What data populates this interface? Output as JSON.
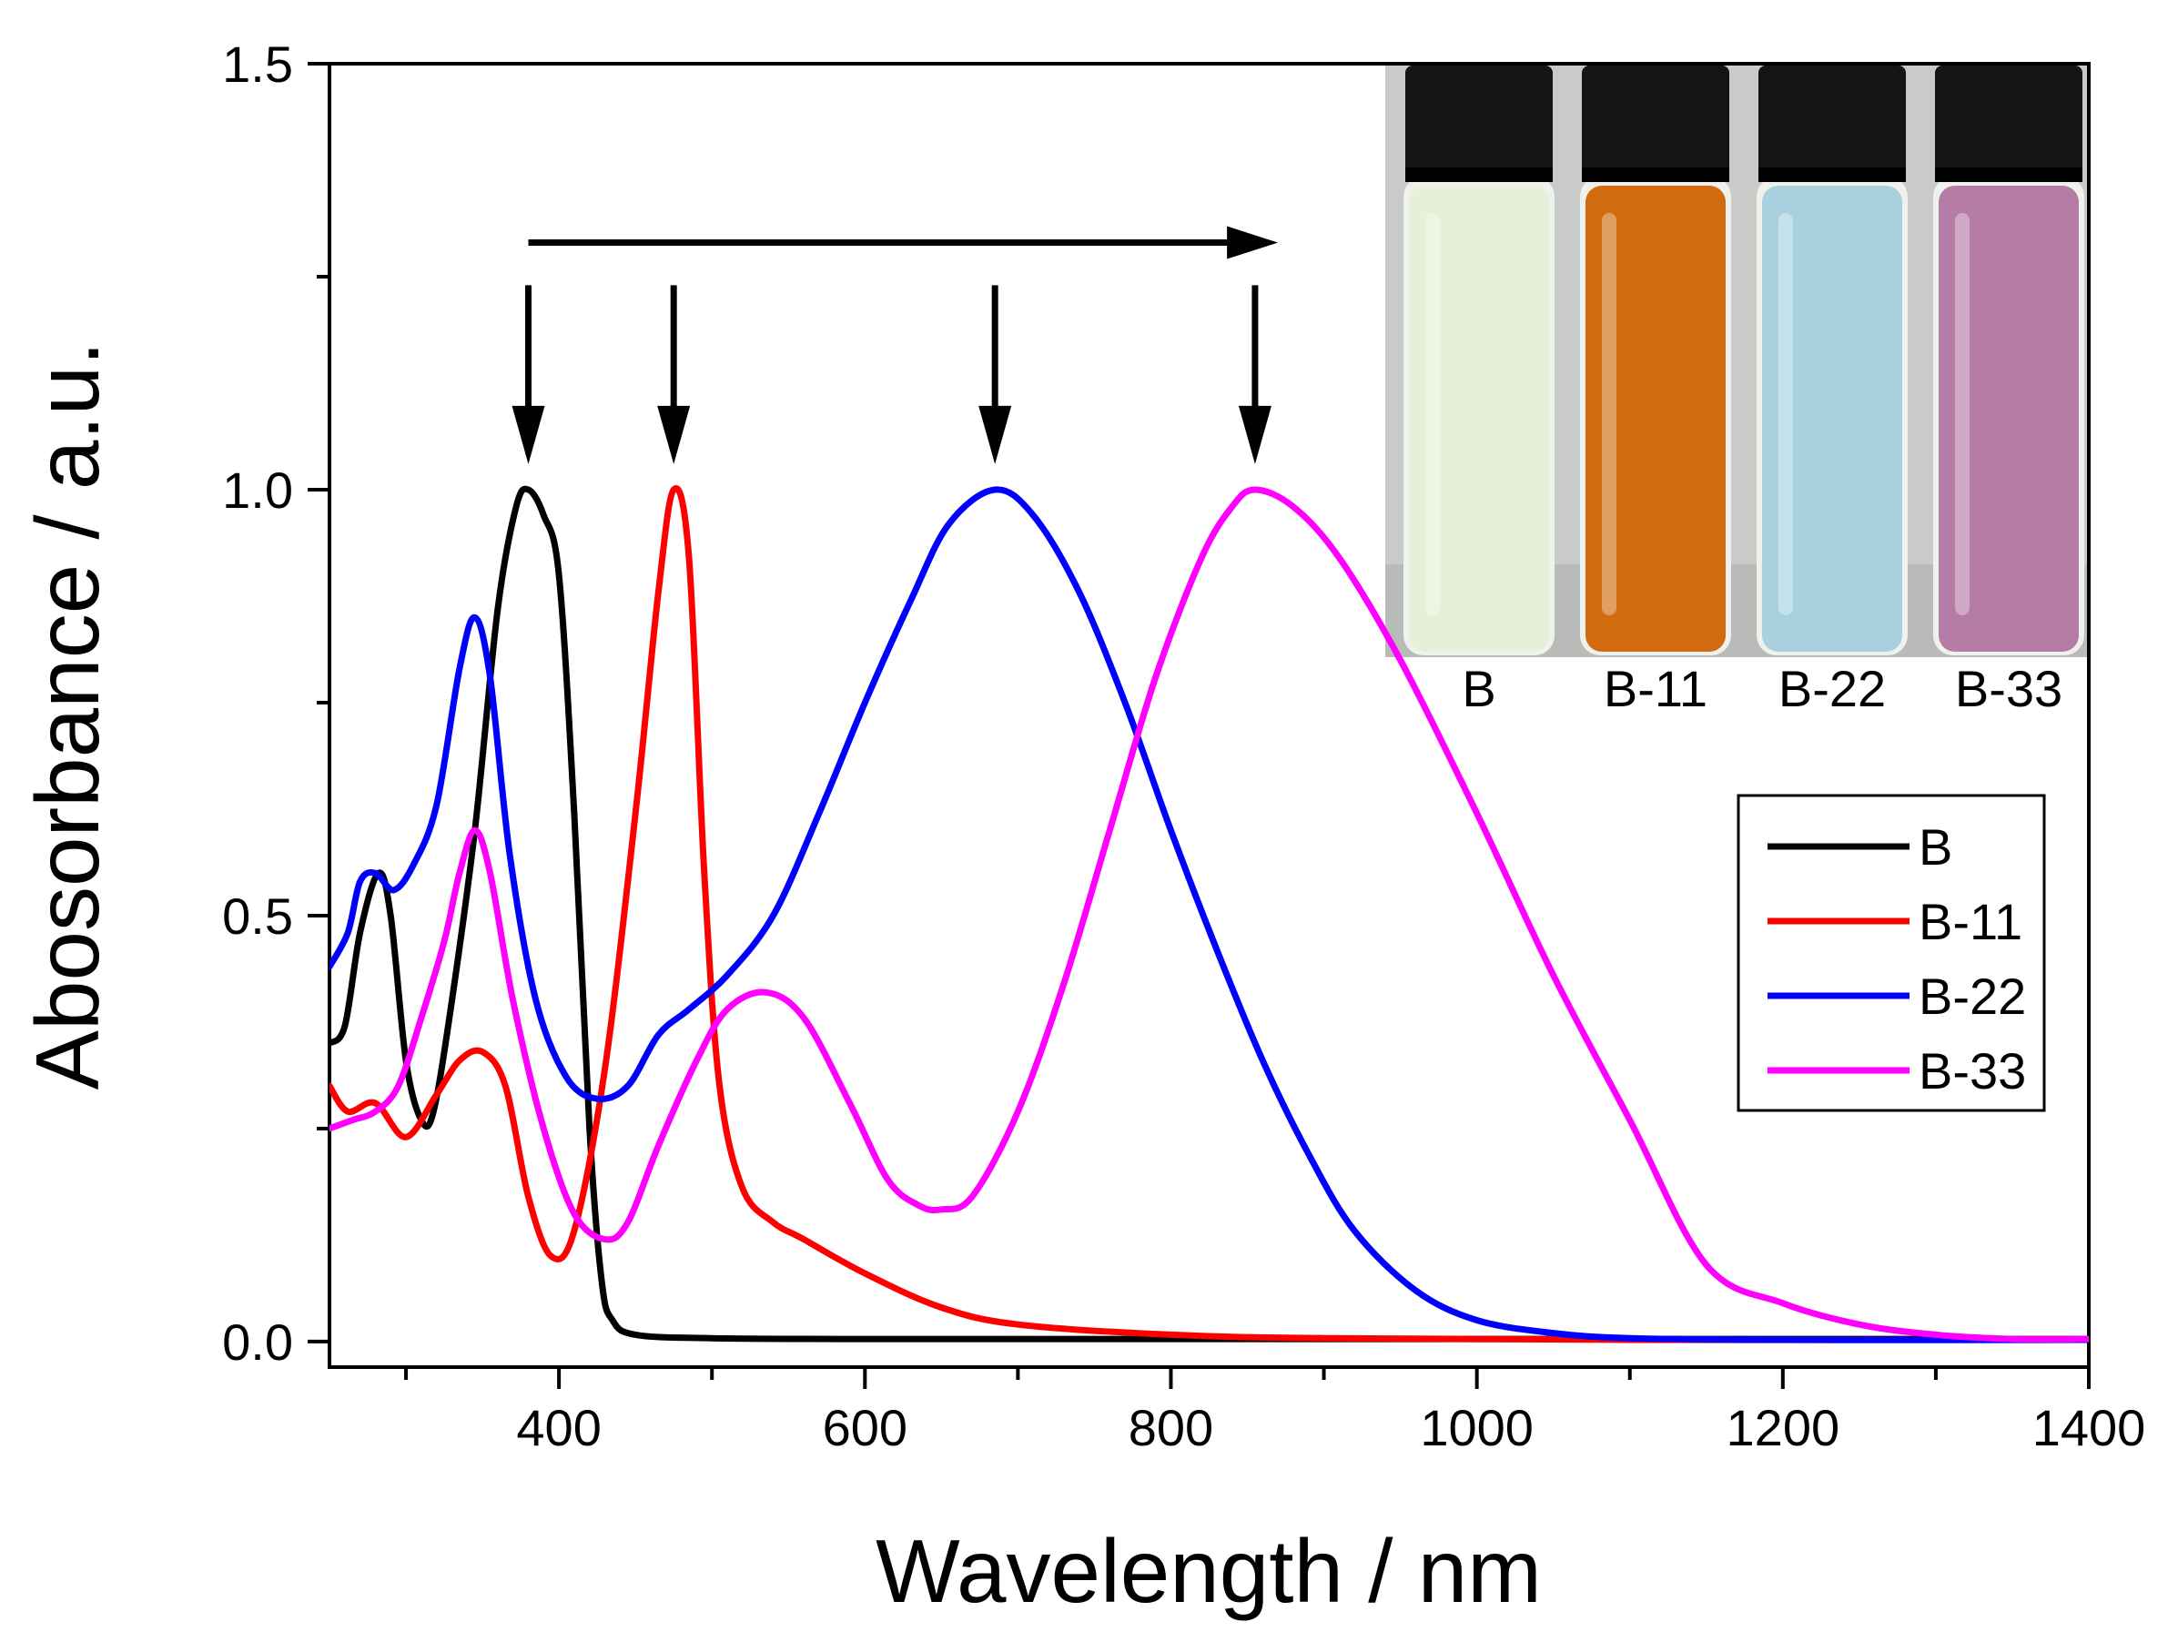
{
  "chart_data": {
    "type": "line",
    "title": "",
    "xlabel": "Wavelength / nm",
    "ylabel": "Abosorbance / a.u.",
    "xlim": [
      250,
      1400
    ],
    "ylim": [
      -0.03,
      1.5
    ],
    "x_ticks": [
      400,
      600,
      800,
      1000,
      1200,
      1400
    ],
    "x_tick_labels": [
      "400",
      "600",
      "800",
      "1000",
      "1200",
      "1400"
    ],
    "y_ticks": [
      0.0,
      0.5,
      1.0,
      1.5
    ],
    "y_tick_labels": [
      "0.0",
      "0.5",
      "1.0",
      "1.5"
    ],
    "grid": false,
    "legend_position": "right",
    "series": [
      {
        "name": "B",
        "color": "#000000",
        "peak_nm": 380,
        "points": [
          [
            250,
            0.35
          ],
          [
            260,
            0.37
          ],
          [
            270,
            0.48
          ],
          [
            282,
            0.55
          ],
          [
            290,
            0.5
          ],
          [
            300,
            0.33
          ],
          [
            310,
            0.26
          ],
          [
            318,
            0.27
          ],
          [
            330,
            0.4
          ],
          [
            345,
            0.6
          ],
          [
            360,
            0.86
          ],
          [
            372,
            0.98
          ],
          [
            380,
            1.0
          ],
          [
            390,
            0.97
          ],
          [
            400,
            0.9
          ],
          [
            410,
            0.62
          ],
          [
            420,
            0.25
          ],
          [
            428,
            0.07
          ],
          [
            435,
            0.025
          ],
          [
            450,
            0.008
          ],
          [
            500,
            0.004
          ],
          [
            600,
            0.003
          ],
          [
            800,
            0.003
          ],
          [
            1000,
            0.003
          ],
          [
            1400,
            0.003
          ]
        ]
      },
      {
        "name": "B-11",
        "color": "#ff0000",
        "peak_nm": 475,
        "points": [
          [
            250,
            0.3
          ],
          [
            262,
            0.27
          ],
          [
            280,
            0.28
          ],
          [
            300,
            0.24
          ],
          [
            320,
            0.29
          ],
          [
            335,
            0.33
          ],
          [
            350,
            0.34
          ],
          [
            365,
            0.3
          ],
          [
            380,
            0.17
          ],
          [
            395,
            0.1
          ],
          [
            410,
            0.13
          ],
          [
            430,
            0.32
          ],
          [
            450,
            0.62
          ],
          [
            465,
            0.88
          ],
          [
            475,
            1.0
          ],
          [
            485,
            0.92
          ],
          [
            495,
            0.55
          ],
          [
            505,
            0.3
          ],
          [
            520,
            0.18
          ],
          [
            540,
            0.14
          ],
          [
            560,
            0.12
          ],
          [
            600,
            0.08
          ],
          [
            650,
            0.04
          ],
          [
            700,
            0.02
          ],
          [
            800,
            0.008
          ],
          [
            900,
            0.004
          ],
          [
            1100,
            0.002
          ],
          [
            1400,
            0.002
          ]
        ]
      },
      {
        "name": "B-22",
        "color": "#0000ff",
        "peak_nm": 685,
        "points": [
          [
            250,
            0.44
          ],
          [
            262,
            0.48
          ],
          [
            270,
            0.54
          ],
          [
            280,
            0.55
          ],
          [
            292,
            0.53
          ],
          [
            305,
            0.56
          ],
          [
            320,
            0.63
          ],
          [
            335,
            0.79
          ],
          [
            345,
            0.85
          ],
          [
            355,
            0.78
          ],
          [
            368,
            0.57
          ],
          [
            385,
            0.4
          ],
          [
            405,
            0.31
          ],
          [
            425,
            0.285
          ],
          [
            445,
            0.3
          ],
          [
            465,
            0.36
          ],
          [
            485,
            0.39
          ],
          [
            510,
            0.43
          ],
          [
            540,
            0.5
          ],
          [
            570,
            0.62
          ],
          [
            600,
            0.75
          ],
          [
            630,
            0.87
          ],
          [
            655,
            0.96
          ],
          [
            685,
            1.0
          ],
          [
            710,
            0.97
          ],
          [
            740,
            0.88
          ],
          [
            770,
            0.75
          ],
          [
            800,
            0.6
          ],
          [
            830,
            0.46
          ],
          [
            860,
            0.33
          ],
          [
            890,
            0.22
          ],
          [
            920,
            0.13
          ],
          [
            960,
            0.06
          ],
          [
            1000,
            0.025
          ],
          [
            1050,
            0.01
          ],
          [
            1100,
            0.004
          ],
          [
            1200,
            0.002
          ],
          [
            1400,
            0.002
          ]
        ]
      },
      {
        "name": "B-33",
        "color": "#ff00ff",
        "peak_nm": 855,
        "points": [
          [
            250,
            0.25
          ],
          [
            265,
            0.26
          ],
          [
            280,
            0.27
          ],
          [
            295,
            0.3
          ],
          [
            310,
            0.38
          ],
          [
            325,
            0.47
          ],
          [
            335,
            0.55
          ],
          [
            345,
            0.6
          ],
          [
            355,
            0.55
          ],
          [
            370,
            0.4
          ],
          [
            390,
            0.25
          ],
          [
            410,
            0.15
          ],
          [
            430,
            0.12
          ],
          [
            445,
            0.14
          ],
          [
            465,
            0.23
          ],
          [
            490,
            0.33
          ],
          [
            510,
            0.39
          ],
          [
            535,
            0.41
          ],
          [
            560,
            0.38
          ],
          [
            590,
            0.28
          ],
          [
            615,
            0.19
          ],
          [
            635,
            0.16
          ],
          [
            650,
            0.155
          ],
          [
            670,
            0.17
          ],
          [
            700,
            0.27
          ],
          [
            730,
            0.42
          ],
          [
            760,
            0.6
          ],
          [
            790,
            0.78
          ],
          [
            820,
            0.92
          ],
          [
            840,
            0.98
          ],
          [
            855,
            1.0
          ],
          [
            880,
            0.98
          ],
          [
            910,
            0.92
          ],
          [
            950,
            0.8
          ],
          [
            1000,
            0.62
          ],
          [
            1050,
            0.43
          ],
          [
            1100,
            0.26
          ],
          [
            1150,
            0.09
          ],
          [
            1200,
            0.045
          ],
          [
            1250,
            0.02
          ],
          [
            1300,
            0.008
          ],
          [
            1350,
            0.003
          ],
          [
            1400,
            0.003
          ]
        ]
      }
    ],
    "annotations": {
      "horizontal_arrow_nm": [
        380,
        870
      ],
      "horizontal_arrow_y": 1.29,
      "peak_arrow_top_y": 1.24,
      "peak_arrow_bottom_y": 1.03
    },
    "inset": {
      "type": "photo",
      "vials": [
        {
          "label": "B",
          "color": "#e6f0d8"
        },
        {
          "label": "B-11",
          "color": "#d26a10"
        },
        {
          "label": "B-22",
          "color": "#a8d0de"
        },
        {
          "label": "B-33",
          "color": "#b57ca6"
        }
      ]
    }
  }
}
